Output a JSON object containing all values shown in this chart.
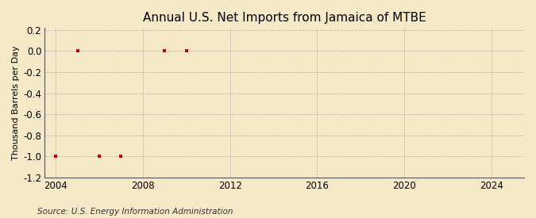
{
  "title": "Annual U.S. Net Imports from Jamaica of MTBE",
  "ylabel": "Thousand Barrels per Day",
  "source": "Source: U.S. Energy Information Administration",
  "x_data": [
    2004,
    2005,
    2006,
    2007,
    2009,
    2010
  ],
  "y_data": [
    -1.0,
    0.0,
    -1.0,
    -1.0,
    0.0,
    0.0
  ],
  "xlim": [
    2003.5,
    2025.5
  ],
  "ylim": [
    -1.2,
    0.22
  ],
  "xticks": [
    2004,
    2008,
    2012,
    2016,
    2020,
    2024
  ],
  "yticks": [
    -1.2,
    -1.0,
    -0.8,
    -0.6,
    -0.4,
    -0.2,
    0.0,
    0.2
  ],
  "ytick_labels": [
    "-1.2",
    "-1.0",
    "-0.8",
    "-0.6",
    "-0.4",
    "-0.2",
    "0.0",
    "0.2"
  ],
  "marker_color": "#cc0000",
  "marker": "s",
  "marker_size": 3.5,
  "bg_color": "#f5e9c8",
  "grid_color": "#999999",
  "title_fontsize": 11,
  "label_fontsize": 8,
  "tick_fontsize": 8.5,
  "source_fontsize": 7.5
}
